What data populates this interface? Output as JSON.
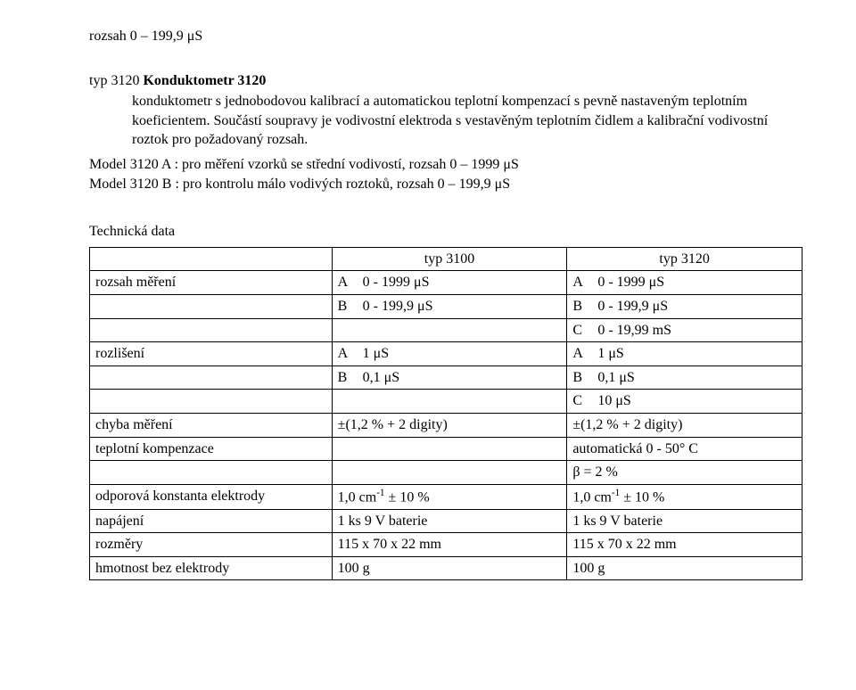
{
  "top_line": "rozsah 0 – 199,9 μS",
  "heading": {
    "prefix": "typ 3120 ",
    "bold": "Konduktometr 3120"
  },
  "paragraph": {
    "line1": "konduktometr s jednobodovou kalibrací a automatickou teplotní kompenzací s pevně nastaveným teplotním koeficientem. ",
    "line2": "Součástí soupravy je vodivostní elektroda s vestavěným teplotním čidlem a kalibrační vodivostní roztok pro požadovaný rozsah."
  },
  "models": {
    "a": "Model 3120 A : pro měření vzorků se střední vodivostí, rozsah 0 – 1999 μS",
    "b": "Model 3120 B : pro kontrolu málo vodivých roztoků, rozsah 0 – 199,9 μS"
  },
  "tech_title": "Technická data",
  "header": {
    "col1": "typ 3100",
    "col2": "typ 3120"
  },
  "rows": {
    "rozsah_label": "rozsah měření",
    "rozsah_a1": "0 - 1999 μS",
    "rozsah_a2": "0 - 1999 μS",
    "rozsah_b1": "0 - 199,9 μS",
    "rozsah_b2": "0 - 199,9 μS",
    "rozsah_c2": "0 - 19,99 mS",
    "rozliseni_label": "rozlišení",
    "rozliseni_a1": "1 μS",
    "rozliseni_a2": "1 μS",
    "rozliseni_b1": "0,1 μS",
    "rozliseni_b2": "0,1 μS",
    "rozliseni_c2": "10 μS",
    "chyba_label": "chyba měření",
    "chyba_1": "±(1,2 % + 2 digity)",
    "chyba_2": "±(1,2 % + 2 digity)",
    "tepkomp_label": "teplotní kompenzace",
    "tepkomp_2": "automatická 0 - 50° C",
    "beta_2": "β = 2 %",
    "odpor_label": "odporová konstanta elektrody",
    "odpor_1_pre": "1,0 cm",
    "odpor_1_sup": "-1",
    "odpor_1_post": " ± 10 %",
    "odpor_2_pre": "1,0 cm",
    "odpor_2_sup": "-1",
    "odpor_2_post": " ± 10 %",
    "napajeni_label": "napájení",
    "napajeni_1": "1 ks 9 V baterie",
    "napajeni_2": "1 ks 9 V baterie",
    "rozmery_label": "rozměry",
    "rozmery_1": "115 x 70 x 22 mm",
    "rozmery_2": "115 x 70 x 22 mm",
    "hmotnost_label": "hmotnost bez elektrody",
    "hmotnost_1": "100 g",
    "hmotnost_2": "100 g"
  },
  "letters": {
    "A": "A",
    "B": "B",
    "C": "C"
  }
}
